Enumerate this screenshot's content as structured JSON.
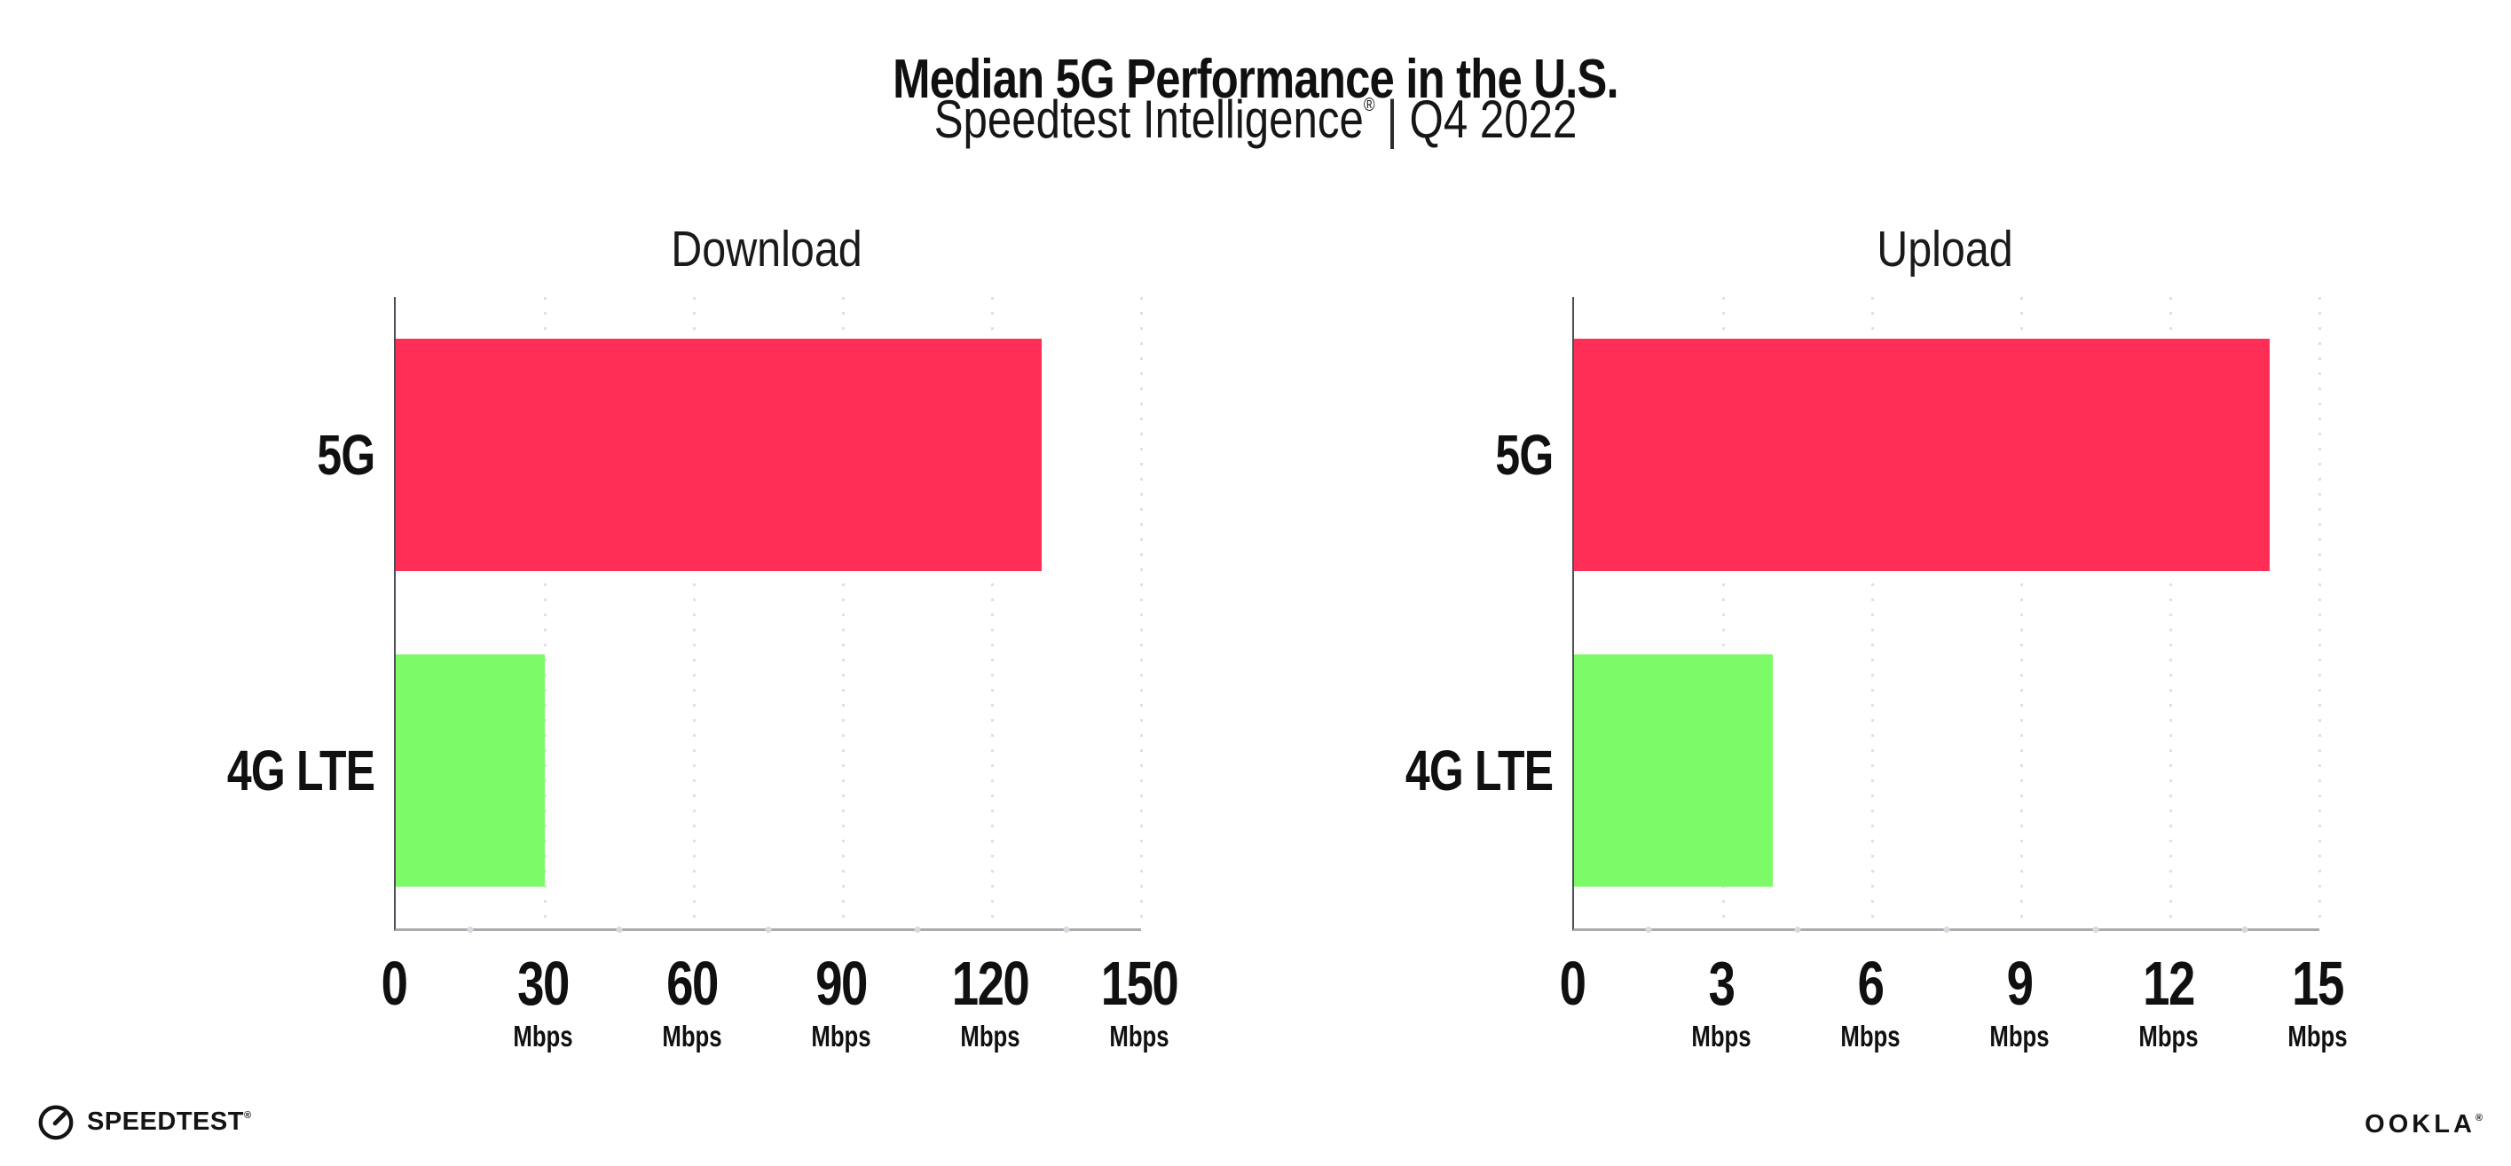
{
  "header": {
    "title": "Median 5G Performance in the U.S.",
    "subtitle": {
      "brand": "Speedtest Intelligence",
      "registered": "®",
      "separator": "|",
      "period": "Q4 2022"
    }
  },
  "footer": {
    "speedtest_icon": "speedtest-gauge-icon",
    "speedtest_label": "SPEEDTEST",
    "speedtest_registered": "®",
    "ookla_label": "OOKLA",
    "ookla_registered": "®"
  },
  "colors": {
    "bar_5g": "#ff2e56",
    "bar_4g_lte": "#7dfa68",
    "x_axis": "#ababab",
    "y_axis": "#4d4d57",
    "gridline": "#dfdfe8",
    "text": "#101010"
  },
  "chart_data": [
    {
      "type": "bar",
      "orientation": "horizontal",
      "title": "Download",
      "categories": [
        "5G",
        "4G LTE"
      ],
      "values": [
        130,
        30
      ],
      "unit": "Mbps",
      "xlim": [
        0,
        150
      ],
      "xticks": [
        0,
        30,
        60,
        90,
        120,
        150
      ],
      "grid": "vertical-dotted",
      "legend": "none",
      "bar_colors": [
        "#ff2e56",
        "#7dfa68"
      ]
    },
    {
      "type": "bar",
      "orientation": "horizontal",
      "title": "Upload",
      "categories": [
        "5G",
        "4G LTE"
      ],
      "values": [
        14,
        4
      ],
      "unit": "Mbps",
      "xlim": [
        0,
        15
      ],
      "xticks": [
        0,
        3,
        6,
        9,
        12,
        15
      ],
      "grid": "vertical-dotted",
      "legend": "none",
      "bar_colors": [
        "#ff2e56",
        "#7dfa68"
      ]
    }
  ]
}
